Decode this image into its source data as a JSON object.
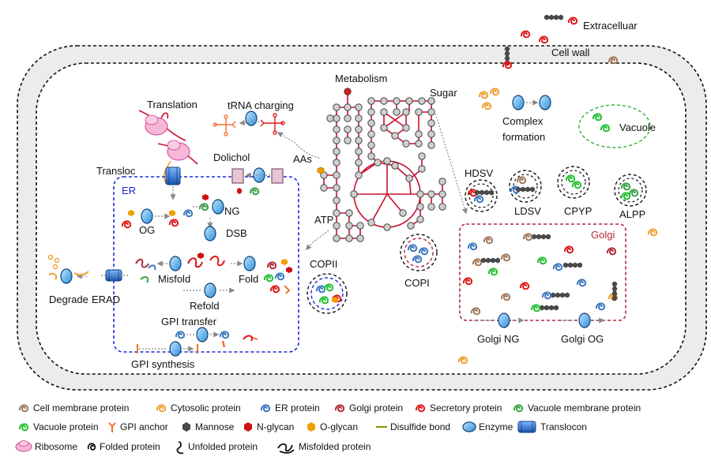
{
  "labels": {
    "extracellular": "Extracelluar",
    "cell_wall": "Cell wall",
    "metabolism": "Metabolism",
    "sugar": "Sugar",
    "translation": "Translation",
    "trna_charging": "tRNA charging",
    "complex_formation_1": "Complex",
    "complex_formation_2": "formation",
    "vacuole": "Vacuole",
    "dolichol": "Dolichol",
    "aas": "AAs",
    "transloc": "Transloc",
    "er": "ER",
    "ng": "NG",
    "og": "OG",
    "dsb": "DSB",
    "hdsv": "HDSV",
    "ldsv": "LDSV",
    "cpyp": "CPYP",
    "alpp": "ALPP",
    "atp": "ATP",
    "golgi": "Golgi",
    "misfold": "Misfold",
    "fold": "Fold",
    "copii": "COPII",
    "copi": "COPI",
    "degrade": "Degrade",
    "erad": "ERAD",
    "refold": "Refold",
    "gpi_transfer": "GPI transfer",
    "gpi_synthesis": "GPI synthesis",
    "golgi_ng": "Golgi NG",
    "golgi_og": "Golgi OG"
  },
  "legend": {
    "row1": [
      "Cell membrane protein",
      "Cytosolic protein",
      "ER protein",
      "Golgi protein",
      "Secretory protein",
      "Vacuole membrane protein"
    ],
    "row2": [
      "Vacuole protein",
      "GPI anchor",
      "Mannose",
      "N-glycan",
      "O-glycan",
      "Disulfide bond",
      "Enzyme",
      "Translocon"
    ],
    "row3": [
      "Ribosome",
      "Folded protein",
      "Unfolded protein",
      "Misfolded protein"
    ]
  },
  "colors": {
    "cell_membrane_protein": "#a0785a",
    "cytosolic_protein": "#f0a030",
    "er_protein": "#3a78c0",
    "golgi_protein": "#b02a3a",
    "secretory_protein": "#e01818",
    "vacuole_membrane_protein": "#38a048",
    "vacuole_protein": "#20c030",
    "gpi_anchor": "#f07030",
    "mannose": "#555555",
    "n_glycan": "#d01010",
    "o_glycan": "#f0a000",
    "disulfide_bond": "#909000",
    "enzyme": "#3aa0e0",
    "translocon": "#1a60c0",
    "ribosome": "#f0a0c8",
    "er_border": "#1a2ad8",
    "golgi_border": "#b02a3a",
    "vacuole_border": "#30b030",
    "metabolism_line": "#c8102e"
  },
  "icons": [
    "ribosome-icon",
    "enzyme-icon",
    "translocon-icon",
    "trna-icon",
    "protein-coil-icon",
    "mannose-icon",
    "n-glycan-icon",
    "o-glycan-icon",
    "gpi-anchor-icon",
    "vesicle-icon"
  ]
}
